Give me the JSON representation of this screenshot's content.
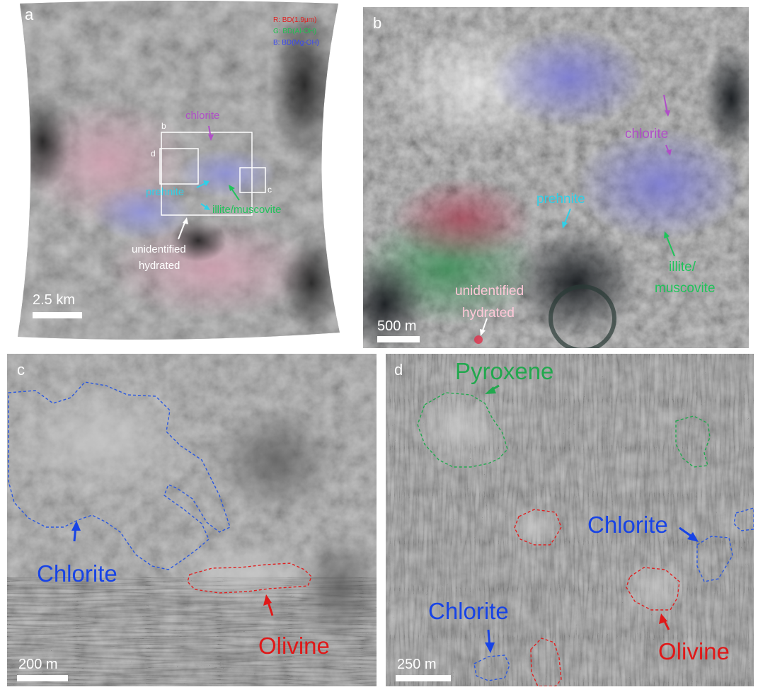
{
  "colors": {
    "chlorite_a": "#b04fc8",
    "prehnite": "#2fd0e8",
    "illite": "#1fc35a",
    "unidentified": "#ffc8d8",
    "blue_label": "#1743e6",
    "red_label": "#e01818",
    "green_label": "#22a84e"
  },
  "panel_a": {
    "letter": "a",
    "legend": {
      "r": "R: BD(1.9μm)",
      "g": "G: BD(Al-OH)",
      "b": "B: BD(Mg-OH)"
    },
    "box_b": "b",
    "box_c": "c",
    "box_d": "d",
    "chlorite": "chlorite",
    "prehnite": "prehnite",
    "illite": "illite/muscovite",
    "unidentified_1": "unidentified",
    "unidentified_2": "hydrated",
    "scale": "2.5 km"
  },
  "panel_b": {
    "letter": "b",
    "chlorite": "chlorite",
    "prehnite": "prehnite",
    "illite_1": "illite/",
    "illite_2": "muscovite",
    "unidentified_1": "unidentified",
    "unidentified_2": "hydrated",
    "scale": "500 m"
  },
  "panel_c": {
    "letter": "c",
    "chlorite": "Chlorite",
    "olivine": "Olivine",
    "scale": "200 m"
  },
  "panel_d": {
    "letter": "d",
    "pyroxene": "Pyroxene",
    "chlorite_1": "Chlorite",
    "chlorite_2": "Chlorite",
    "olivine": "Olivine",
    "scale": "250 m"
  }
}
